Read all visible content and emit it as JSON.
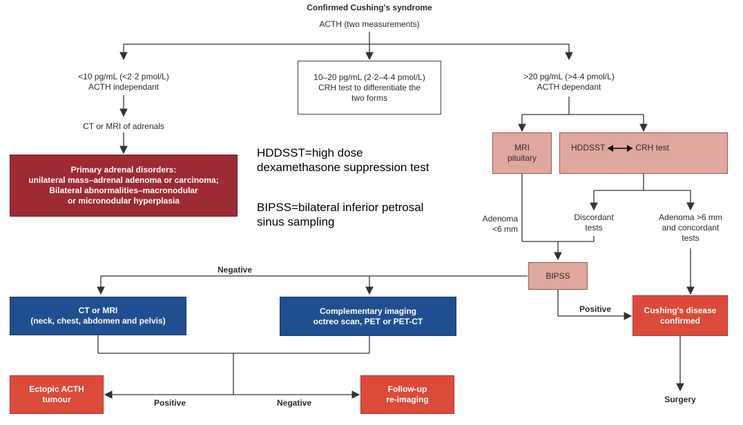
{
  "header": {
    "title": "Confirmed Cushing's syndrome",
    "subtitle": "ACTH (two measurements)"
  },
  "left_branch": {
    "label_lines": [
      "<10 pg/mL (<2·2 pmol/L)",
      "ACTH independant"
    ],
    "imaging": "CT or MRI of adrenals",
    "disorders_lines": [
      "Primary adrenal disorders:",
      "unilateral mass–adrenal adenoma or carcinoma;",
      "Bilateral abnormalities–macronodular",
      "or micronodular hyperplasia"
    ]
  },
  "middle_branch": {
    "lines": [
      "10–20 pg/mL (2·2–4·4 pmol/L)",
      "CRH test to differentiate the",
      "two forms"
    ]
  },
  "right_branch": {
    "label_lines": [
      ">20 pg/mL (>4·4 pmol/L)",
      "ACTH dependant"
    ],
    "mri_lines": [
      "MRI",
      "pituitary"
    ],
    "hddsst": "HDDSST",
    "crh": "CRH test",
    "adenoma_small_lines": [
      "Adenoma",
      "<6 mm"
    ],
    "discordant_lines": [
      "Discordant",
      "tests"
    ],
    "adenoma_large_lines": [
      "Adenoma >6 mm",
      "and concordant",
      "tests"
    ],
    "bipss": "BIPSS",
    "negative": "Negative",
    "positive": "Positive",
    "disease_lines": [
      "Cushing's disease",
      "confirmed"
    ],
    "surgery": "Surgery"
  },
  "notes": {
    "hddsst_lines": [
      "HDDSST=high dose",
      "dexamethasone suppression test"
    ],
    "bipss_lines": [
      "BIPSS=bilateral inferior petrosal",
      "sinus sampling"
    ]
  },
  "bottom": {
    "ct_lines": [
      "CT or MRI",
      "(neck, chest, abdomen and pelvis)"
    ],
    "comp_lines": [
      "Complementary imaging",
      "octreo scan, PET or PET-CT"
    ],
    "ectopic_lines": [
      "Ectopic ACTH",
      "tumour"
    ],
    "followup_lines": [
      "Follow-up",
      "re-imaging"
    ],
    "positive": "Positive",
    "negative": "Negative"
  },
  "colors": {
    "maroon": "#9e2a33",
    "blue": "#1f4f91",
    "red": "#dc4a3a",
    "pink": "#dfa79e",
    "line": "#333333"
  }
}
